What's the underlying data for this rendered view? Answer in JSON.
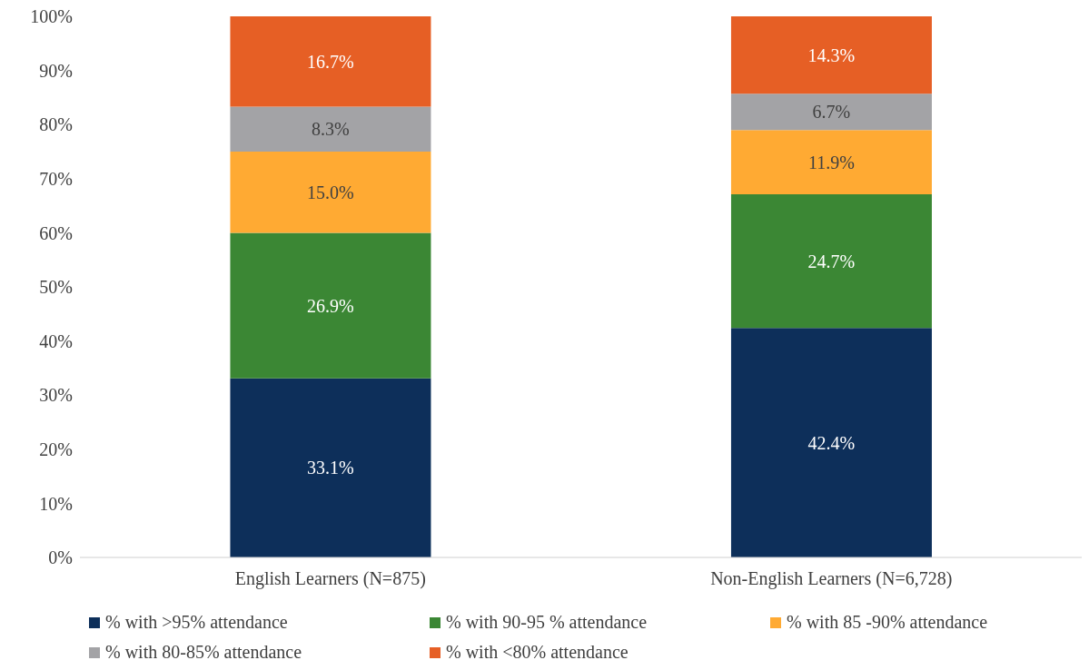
{
  "chart_data": {
    "type": "bar",
    "stacked": true,
    "categories": [
      "English Learners (N=875)",
      "Non-English Learners (N=6,728)"
    ],
    "series": [
      {
        "name": "% with >95% attendance",
        "color": "#0d2f5a",
        "values": [
          33.1,
          42.4
        ],
        "value_labels": [
          "33.1%",
          "42.4%"
        ]
      },
      {
        "name": "% with 90-95 % attendance",
        "color": "#3b8734",
        "values": [
          26.9,
          24.7
        ],
        "value_labels": [
          "26.9%",
          "24.7%"
        ]
      },
      {
        "name": "% with 85 -90% attendance",
        "color": "#ffaa33",
        "values": [
          15.0,
          11.9
        ],
        "value_labels": [
          "15.0%",
          "11.9%"
        ]
      },
      {
        "name": "% with 80-85% attendance",
        "color": "#a3a3a6",
        "values": [
          8.3,
          6.7
        ],
        "value_labels": [
          "8.3%",
          "6.7%"
        ]
      },
      {
        "name": "% with <80% attendance",
        "color": "#e65f25",
        "values": [
          16.7,
          14.3
        ],
        "value_labels": [
          "16.7%",
          "14.3%"
        ]
      }
    ],
    "ylim": [
      0,
      100
    ],
    "yticks": [
      {
        "value": 0,
        "label": "0%"
      },
      {
        "value": 10,
        "label": "10%"
      },
      {
        "value": 20,
        "label": "20%"
      },
      {
        "value": 30,
        "label": "30%"
      },
      {
        "value": 40,
        "label": "40%"
      },
      {
        "value": 50,
        "label": "50%"
      },
      {
        "value": 60,
        "label": "60%"
      },
      {
        "value": 70,
        "label": "70%"
      },
      {
        "value": 80,
        "label": "80%"
      },
      {
        "value": 90,
        "label": "90%"
      },
      {
        "value": 100,
        "label": "100%"
      }
    ],
    "grid": false,
    "legend": "bottom"
  }
}
